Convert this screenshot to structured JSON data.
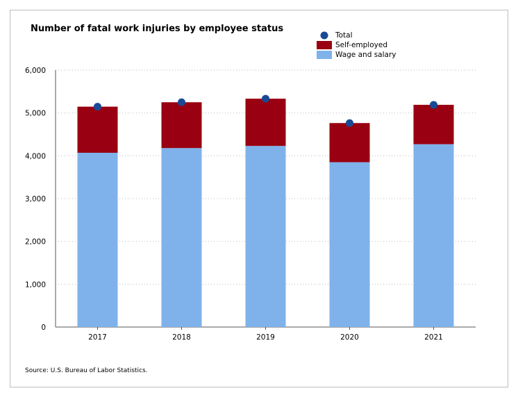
{
  "title": "Number of fatal work injuries by employee status",
  "source": "Source: U.S. Bureau of Labor Statistics.",
  "legend": [
    {
      "label": "Total",
      "color": "#1a4a96",
      "shape": "circle"
    },
    {
      "label": "Self-employed",
      "color": "#990011",
      "shape": "square"
    },
    {
      "label": "Wage and salary",
      "color": "#7fb2ea",
      "shape": "square"
    }
  ],
  "chart_data": {
    "type": "bar",
    "stacked": true,
    "title": "Number of fatal work injuries by employee status",
    "xlabel": "",
    "ylabel": "",
    "categories": [
      "2017",
      "2018",
      "2019",
      "2020",
      "2021"
    ],
    "series": [
      {
        "name": "Wage and salary",
        "color": "#7fb2ea",
        "values": [
          4070,
          4180,
          4230,
          3850,
          4270
        ]
      },
      {
        "name": "Self-employed",
        "color": "#990011",
        "values": [
          1077,
          1070,
          1103,
          914,
          920
        ]
      }
    ],
    "total": {
      "name": "Total",
      "color": "#1a4a96",
      "values": [
        5147,
        5250,
        5333,
        4764,
        5190
      ]
    },
    "ylim": [
      0,
      6000
    ],
    "yticks": [
      0,
      1000,
      2000,
      3000,
      4000,
      5000,
      6000
    ],
    "ytick_labels": [
      "0",
      "1,000",
      "2,000",
      "3,000",
      "4,000",
      "5,000",
      "6,000"
    ],
    "grid": "horizontal-dotted",
    "legend_position": "top-right"
  }
}
